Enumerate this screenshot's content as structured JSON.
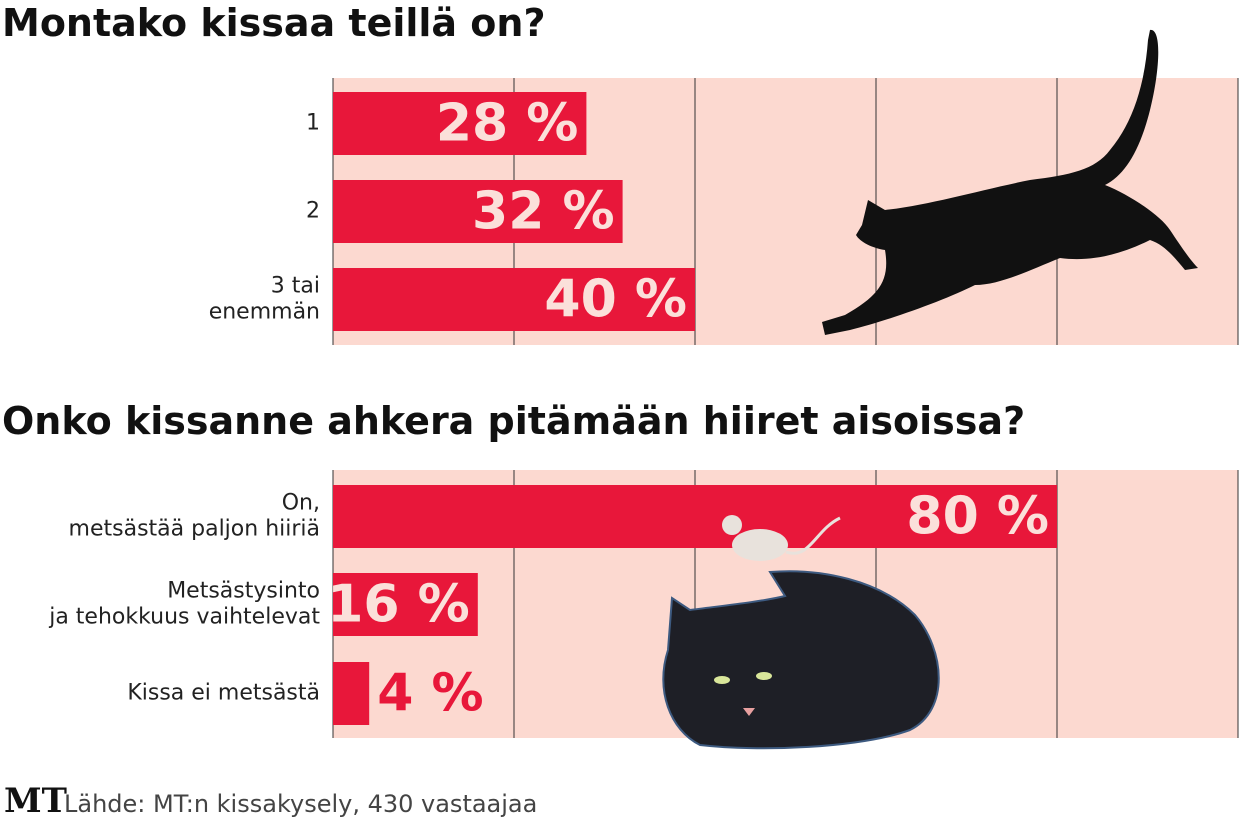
{
  "chart_data": [
    {
      "type": "bar",
      "title": "Montako kissaa teillä on?",
      "categories": [
        "1",
        "2",
        "3 tai\nenemmän"
      ],
      "values": [
        28,
        32,
        40
      ],
      "value_labels": [
        "28 %",
        "32 %",
        "40 %"
      ],
      "color": "#e8173a",
      "xlim": [
        0,
        100
      ],
      "xticks": [
        0,
        20,
        40,
        60,
        80,
        100
      ],
      "grid": true
    },
    {
      "type": "bar",
      "title": "Onko kissanne ahkera pitämään hiiret aisoissa?",
      "categories": [
        "On,\nmetsästää paljon hiiriä",
        "Metsästysinto\nja tehokkuus vaihtelevat",
        "Kissa ei metsästä"
      ],
      "values": [
        80,
        16,
        4
      ],
      "value_labels": [
        "80 %",
        "16 %",
        "4 %"
      ],
      "color": "#e8173a",
      "xlim": [
        0,
        100
      ],
      "xticks": [
        0,
        20,
        40,
        60,
        80,
        100
      ],
      "grid": true
    }
  ],
  "footer": {
    "logo": "MT",
    "source": "Lähde: MT:n kissakysely, 430 vastaajaa"
  }
}
